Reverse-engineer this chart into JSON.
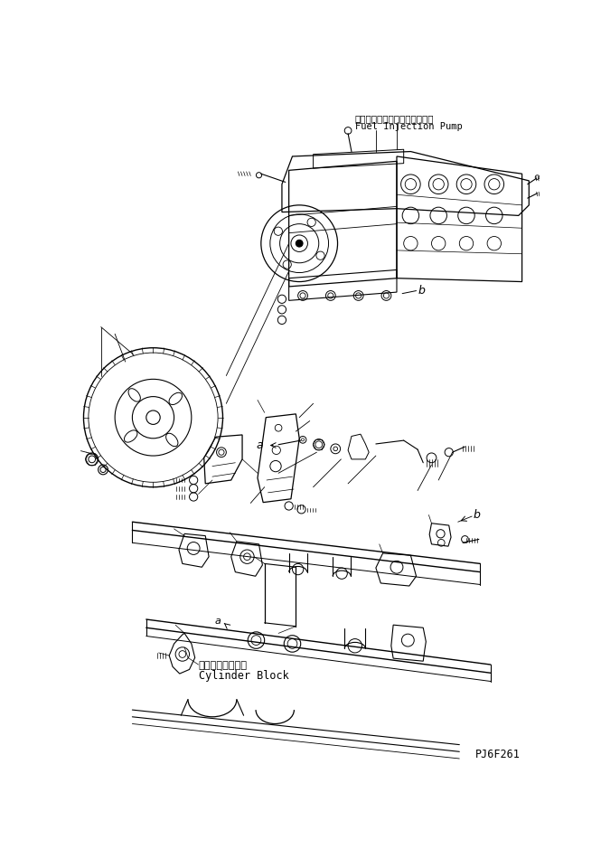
{
  "background_color": "#ffffff",
  "line_color": "#000000",
  "text_color": "#000000",
  "label_top_japanese": "フェルインジェクションポンプ",
  "label_top_english": "Fuel Injection Pump",
  "label_bottom_japanese": "シリンダブロック",
  "label_bottom_english": "Cylinder Block",
  "label_a": "a",
  "label_b": "b",
  "part_number": "PJ6F261",
  "fig_width": 6.65,
  "fig_height": 9.6,
  "dpi": 100
}
